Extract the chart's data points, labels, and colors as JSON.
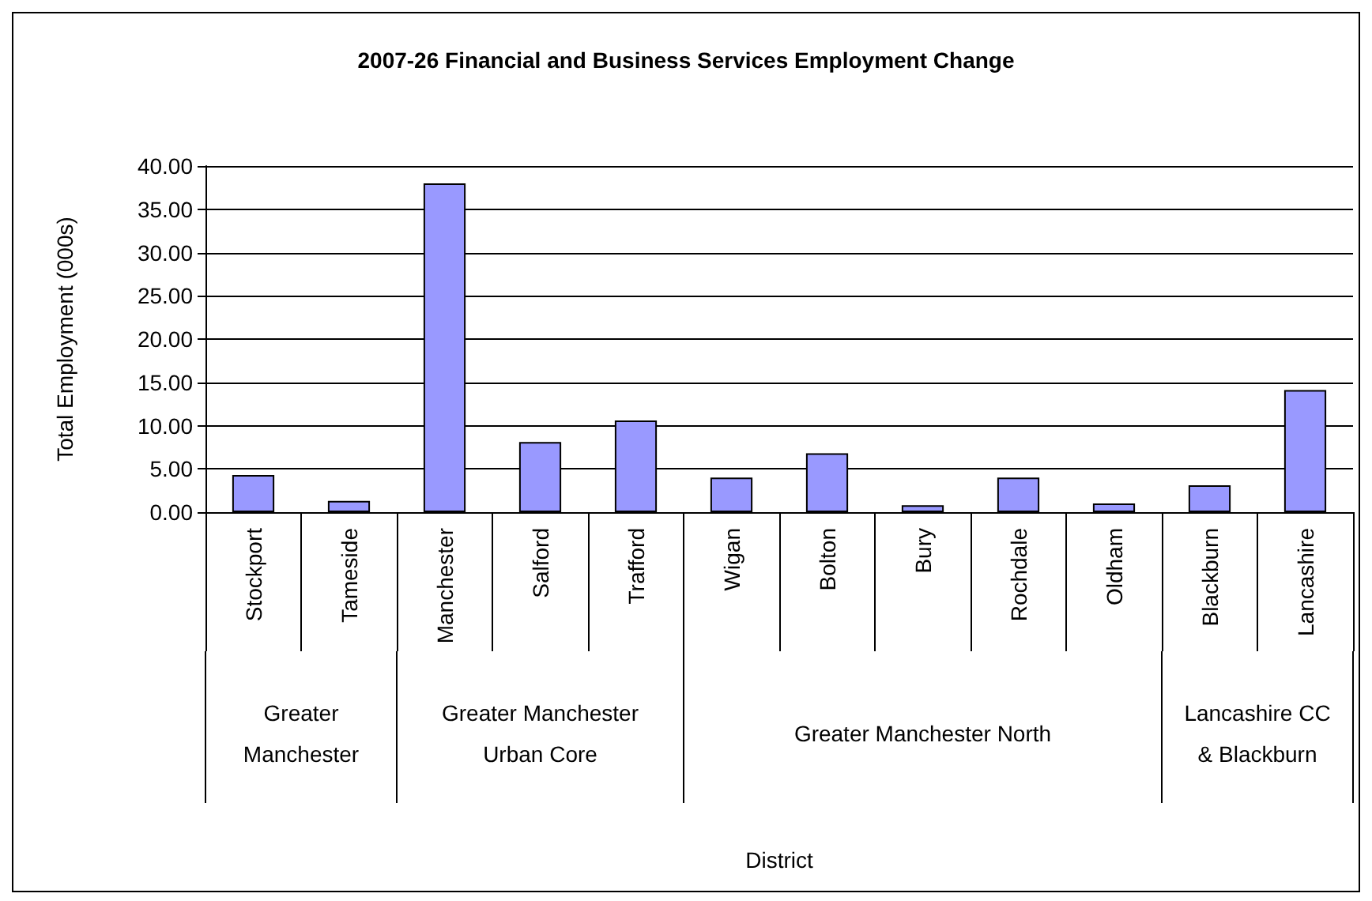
{
  "chart_data": {
    "type": "bar",
    "title": "2007-26 Financial and Business Services Employment Change",
    "ylabel": "Total Employment (000s)",
    "categories": [
      "Stockport",
      "Tameside",
      "Manchester",
      "Salford",
      "Trafford",
      "Wigan",
      "Bolton",
      "Bury",
      "Rochdale",
      "Oldham",
      "Blackburn",
      "Lancashire"
    ],
    "values": [
      4.3,
      1.3,
      38.0,
      8.1,
      10.6,
      4.0,
      6.8,
      0.8,
      4.0,
      1.0,
      3.1,
      14.1
    ],
    "color": "#9999ff",
    "ylim": [
      0,
      40
    ],
    "yticks": [
      {
        "value": 0,
        "label": "0.00"
      },
      {
        "value": 5,
        "label": "5.00"
      },
      {
        "value": 10,
        "label": "10.00"
      },
      {
        "value": 15,
        "label": "15.00"
      },
      {
        "value": 20,
        "label": "20.00"
      },
      {
        "value": 25,
        "label": "25.00"
      },
      {
        "value": 30,
        "label": "30.00"
      },
      {
        "value": 35,
        "label": "35.00"
      },
      {
        "value": 40,
        "label": "40.00"
      }
    ],
    "annotations": [
      "Greater\nManchester",
      "Greater Manchester\nUrban Core",
      "Greater Manchester North",
      "Lancashire CC\n& Blackburn",
      "District"
    ],
    "grid": "y"
  }
}
